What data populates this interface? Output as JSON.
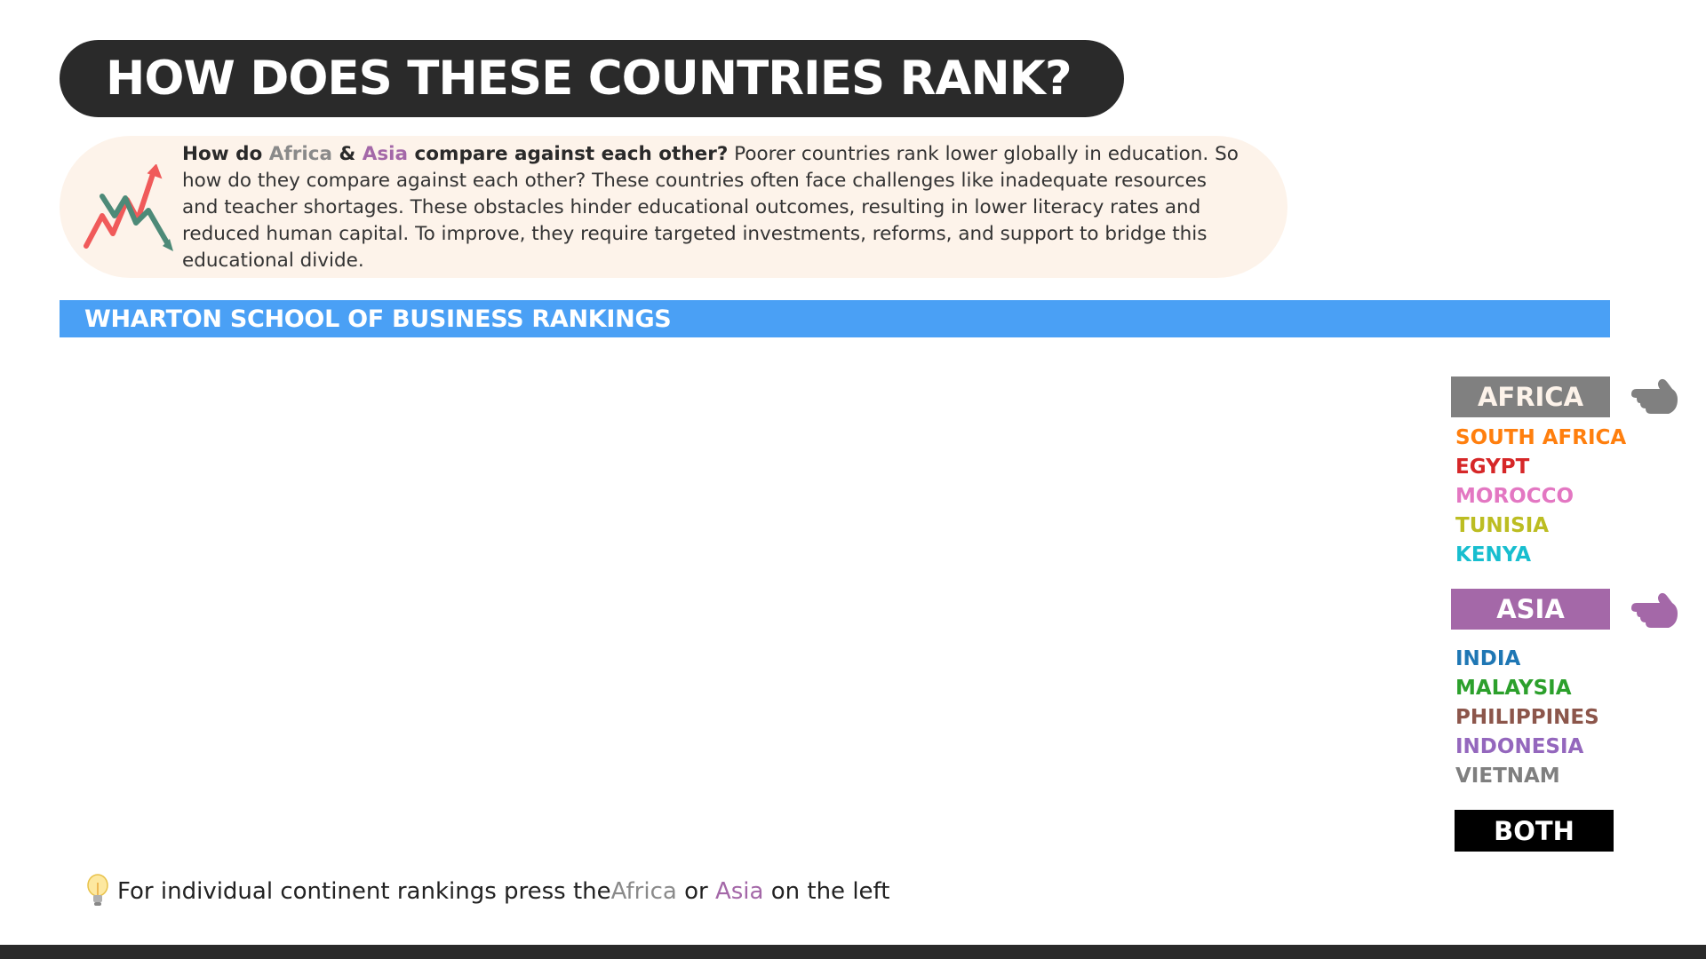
{
  "header": {
    "title": "HOW DOES THESE COUNTRIES RANK?"
  },
  "intro": {
    "icon": "trend-chart-icon",
    "lead_1": "How do ",
    "africa_word": "Africa",
    "lead_2": " & ",
    "asia_word": "Asia",
    "lead_3": " compare against each other?",
    "body": " Poorer countries rank lower globally in education. So how do they compare against each other? These countries often face challenges like inadequate resources and teacher shortages. These obstacles hinder educational outcomes, resulting in lower literacy rates and reduced human capital. To improve, they require targeted investments, reforms, and support to bridge this educational divide."
  },
  "section": {
    "title": "WHARTON SCHOOL OF BUSINESS RANKINGS"
  },
  "legend": {
    "africa": {
      "label": "AFRICA",
      "color": "#808080",
      "icon": "pointing-hand-icon",
      "countries": [
        {
          "name": "SOUTH AFRICA",
          "color": "#ff7f0e"
        },
        {
          "name": "EGYPT",
          "color": "#d62728"
        },
        {
          "name": "MOROCCO",
          "color": "#e377c2"
        },
        {
          "name": "TUNISIA",
          "color": "#bcbd22"
        },
        {
          "name": "KENYA",
          "color": "#17becf"
        }
      ]
    },
    "asia": {
      "label": "ASIA",
      "color": "#a468a8",
      "icon": "pointing-hand-icon",
      "countries": [
        {
          "name": "INDIA",
          "color": "#1f77b4"
        },
        {
          "name": "MALAYSIA",
          "color": "#2ca02c"
        },
        {
          "name": "PHILIPPINES",
          "color": "#8c564b"
        },
        {
          "name": "INDONESIA",
          "color": "#9467bd"
        },
        {
          "name": "VIETNAM",
          "color": "#7f7f7f"
        }
      ]
    },
    "both": {
      "label": "BOTH"
    }
  },
  "tip": {
    "icon": "lightbulb-icon",
    "text_1": "For individual continent rankings press the ",
    "africa_word": "Africa",
    "text_2": " or ",
    "asia_word": "Asia",
    "text_3": " on the left"
  }
}
